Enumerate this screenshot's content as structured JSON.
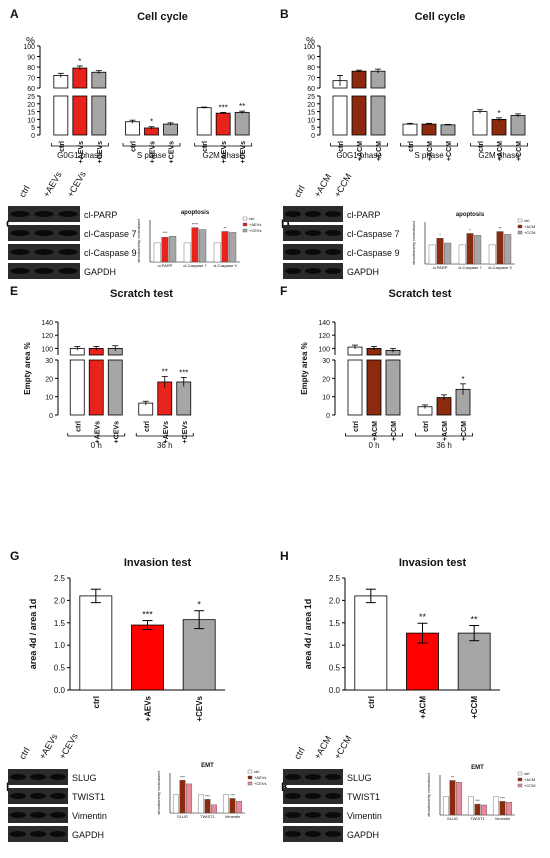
{
  "panels": [
    {
      "id": "A",
      "letter": "A",
      "title": "Cell cycle",
      "kind": "bar-broken",
      "unit": "%",
      "groups": [
        {
          "label": "G0G1 phase",
          "bars": [
            "ctrl",
            "+AEVs",
            "+CEVs"
          ],
          "values": [
            72,
            79,
            75
          ],
          "errors": [
            2,
            2,
            1.5
          ],
          "stars": [
            "",
            "*",
            ""
          ]
        },
        {
          "label": "S phase",
          "bars": [
            "ctrl",
            "+AEVs",
            "+CEVs"
          ],
          "values": [
            8.5,
            4.5,
            7
          ],
          "errors": [
            1,
            0.8,
            0.8
          ],
          "stars": [
            "",
            "*",
            ""
          ]
        },
        {
          "label": "G2M phase",
          "bars": [
            "ctrl",
            "+AEVs",
            "+CEVs"
          ],
          "values": [
            17.5,
            14,
            14.5
          ],
          "errors": [
            0.4,
            0.5,
            0.8
          ],
          "stars": [
            "",
            "***",
            "**"
          ]
        }
      ],
      "colors": [
        "#ffffff",
        "#e8231b",
        "#a6a6a6"
      ]
    },
    {
      "id": "B",
      "letter": "B",
      "title": "Cell cycle",
      "kind": "bar-broken",
      "unit": "%",
      "groups": [
        {
          "label": "G0G1 phase",
          "bars": [
            "ctrl",
            "+ACM",
            "+CCM"
          ],
          "values": [
            67,
            76,
            76
          ],
          "errors": [
            5,
            1,
            2
          ],
          "stars": [
            "",
            "",
            ""
          ]
        },
        {
          "label": "S phase",
          "bars": [
            "ctrl",
            "+ACM",
            "+CCM"
          ],
          "values": [
            7,
            7,
            6.5
          ],
          "errors": [
            0.5,
            0.5,
            0.3
          ],
          "stars": [
            "",
            "",
            ""
          ]
        },
        {
          "label": "G2M phase",
          "bars": [
            "ctrl",
            "+ACM",
            "+CCM"
          ],
          "values": [
            15,
            10,
            12.5
          ],
          "errors": [
            1.2,
            1,
            1
          ],
          "stars": [
            "",
            "*",
            ""
          ]
        }
      ],
      "colors": [
        "#ffffff",
        "#8b2a0c",
        "#a6a6a6"
      ]
    },
    {
      "id": "E",
      "letter": "E",
      "title": "Scratch test",
      "kind": "bar-broken",
      "ylabel": "Empty area %",
      "groups": [
        {
          "label": "0 h",
          "bars": [
            "ctrl",
            "+AEVs",
            "+CEVs"
          ],
          "values": [
            100,
            100,
            100
          ],
          "errors": [
            3,
            3,
            4
          ],
          "stars": [
            "",
            "",
            ""
          ]
        },
        {
          "label": "36 h",
          "bars": [
            "ctrl",
            "+AEVs",
            "+CEVs"
          ],
          "values": [
            6.5,
            18,
            18
          ],
          "errors": [
            1,
            3,
            2.5
          ],
          "stars": [
            "",
            "**",
            "***"
          ]
        }
      ],
      "colors": [
        "#ffffff",
        "#e8231b",
        "#a6a6a6"
      ]
    },
    {
      "id": "F",
      "letter": "F",
      "title": "Scratch test",
      "kind": "bar-broken",
      "ylabel": "Empty area %",
      "groups": [
        {
          "label": "0 h",
          "bars": [
            "ctrl",
            "+ACM",
            "+CCM"
          ],
          "values": [
            102,
            100,
            97
          ],
          "errors": [
            3,
            3,
            3
          ],
          "stars": [
            "",
            "",
            ""
          ]
        },
        {
          "label": "36 h",
          "bars": [
            "ctrl",
            "+ACM",
            "+CCM"
          ],
          "values": [
            4.5,
            9.5,
            14
          ],
          "errors": [
            1,
            1.5,
            3
          ],
          "stars": [
            "",
            "",
            "*"
          ]
        }
      ],
      "colors": [
        "#ffffff",
        "#8b2a0c",
        "#a6a6a6"
      ]
    },
    {
      "id": "G",
      "letter": "G",
      "title": "Invasion test",
      "kind": "bar",
      "ylabel": "area 4d / area 1d",
      "categories": [
        "ctrl",
        "+AEVs",
        "+CEVs"
      ],
      "values": [
        2.1,
        1.45,
        1.57
      ],
      "errors": [
        0.15,
        0.1,
        0.2
      ],
      "stars": [
        "",
        "***",
        "*"
      ],
      "ylim": [
        0,
        2.5
      ],
      "yticks": [
        "0.0",
        "0.5",
        "1.0",
        "1.5",
        "2.0",
        "2.5"
      ],
      "colors": [
        "#ffffff",
        "#ff0000",
        "#a6a6a6"
      ]
    },
    {
      "id": "H",
      "letter": "H",
      "title": "Invasion test",
      "kind": "bar",
      "ylabel": "area 4d / area 1d",
      "categories": [
        "ctrl",
        "+ACM",
        "+CCM"
      ],
      "values": [
        2.1,
        1.27,
        1.27
      ],
      "errors": [
        0.15,
        0.22,
        0.17
      ],
      "stars": [
        "",
        "**",
        "**"
      ],
      "ylim": [
        0,
        2.5
      ],
      "yticks": [
        "0.0",
        "0.5",
        "1.0",
        "1.5",
        "2.0",
        "2.5"
      ],
      "colors": [
        "#ffffff",
        "#ff0000",
        "#a6a6a6"
      ]
    }
  ],
  "blot_panels": [
    {
      "id": "C",
      "letter": "C",
      "lanes": [
        "ctrl",
        "+AEVs",
        "+CEVs"
      ],
      "bands": [
        "cl-PARP",
        "cl-Caspase 7",
        "cl-Caspase 9",
        "GAPDH"
      ],
      "inset": {
        "title": "apoptosis",
        "ylabel": "densitometry normalized",
        "categories": [
          "cl-PARP",
          "cl-Caspase 7",
          "cl-Caspase 9"
        ],
        "legend": [
          "ctrl",
          "+AEVs",
          "+CEVs"
        ],
        "series": [
          [
            1.0,
            1.0,
            1.0
          ],
          [
            1.3,
            1.8,
            1.6
          ],
          [
            1.35,
            1.7,
            1.55
          ]
        ],
        "stars": [
          "***",
          "****",
          "**"
        ],
        "colors": [
          "#ffffff",
          "#e8231b",
          "#a6a6a6"
        ]
      }
    },
    {
      "id": "D",
      "letter": "D",
      "lanes": [
        "ctrl",
        "+ACM",
        "+CCM"
      ],
      "bands": [
        "cl-PARP",
        "cl-Caspase 7",
        "cl-Caspase 9",
        "GAPDH"
      ],
      "inset": {
        "title": "apoptosis",
        "ylabel": "densitometry normalized",
        "categories": [
          "cl-PARP",
          "cl-Caspase 7",
          "cl-Caspase 9"
        ],
        "legend": [
          "ctrl",
          "+ACM",
          "+CCM"
        ],
        "series": [
          [
            1.0,
            1.0,
            1.0
          ],
          [
            1.35,
            1.6,
            1.7
          ],
          [
            1.1,
            1.5,
            1.55
          ]
        ],
        "stars": [
          "*",
          "*",
          "**"
        ],
        "colors": [
          "#ffffff",
          "#8b2a0c",
          "#a6a6a6"
        ]
      }
    },
    {
      "id": "I",
      "letter": "I",
      "lanes": [
        "ctrl",
        "+AEVs",
        "+CEVs"
      ],
      "bands": [
        "SLUG",
        "TWIST1",
        "Vimentin",
        "GAPDH"
      ],
      "inset": {
        "title": "EMT",
        "ylabel": "densitometry normalized",
        "categories": [
          "SLUG",
          "TWIST1",
          "Vimentin"
        ],
        "legend": [
          "ctrl",
          "+AEVs",
          "+CEVs"
        ],
        "series": [
          [
            1.0,
            1.0,
            1.0
          ],
          [
            1.8,
            0.75,
            0.8
          ],
          [
            1.6,
            0.45,
            0.65
          ]
        ],
        "stars": [
          "***",
          "***",
          "***"
        ],
        "colors": [
          "#ffffff",
          "#8b2a0c",
          "#e88a9a"
        ]
      }
    },
    {
      "id": "K",
      "letter": "K",
      "lanes": [
        "ctrl",
        "+ACM",
        "+CCM"
      ],
      "bands": [
        "SLUG",
        "TWIST1",
        "Vimentin",
        "GAPDH"
      ],
      "inset": {
        "title": "EMT",
        "ylabel": "densitometry normalized",
        "categories": [
          "SLUG",
          "TWIST1",
          "Vimentin"
        ],
        "legend": [
          "ctrl",
          "+ACM",
          "+CCM"
        ],
        "series": [
          [
            1.0,
            1.0,
            1.0
          ],
          [
            1.9,
            0.6,
            0.75
          ],
          [
            1.8,
            0.55,
            0.7
          ]
        ],
        "stars": [
          "**",
          "***",
          "***"
        ],
        "colors": [
          "#ffffff",
          "#8b2a0c",
          "#e88a9a"
        ]
      }
    }
  ],
  "chart_data": [
    {
      "panel": "A",
      "type": "bar",
      "title": "Cell cycle",
      "ylabel": "%",
      "categories": [
        "G0G1 phase",
        "S phase",
        "G2M phase"
      ],
      "series": [
        {
          "name": "ctrl",
          "values": [
            72,
            8.5,
            17.5
          ]
        },
        {
          "name": "+AEVs",
          "values": [
            79,
            4.5,
            14
          ]
        },
        {
          "name": "+CEVs",
          "values": [
            75,
            7,
            14.5
          ]
        }
      ]
    },
    {
      "panel": "B",
      "type": "bar",
      "title": "Cell cycle",
      "ylabel": "%",
      "categories": [
        "G0G1 phase",
        "S phase",
        "G2M phase"
      ],
      "series": [
        {
          "name": "ctrl",
          "values": [
            67,
            7,
            15
          ]
        },
        {
          "name": "+ACM",
          "values": [
            76,
            7,
            10
          ]
        },
        {
          "name": "+CCM",
          "values": [
            76,
            6.5,
            12.5
          ]
        }
      ]
    },
    {
      "panel": "E",
      "type": "bar",
      "title": "Scratch test",
      "ylabel": "Empty area %",
      "categories": [
        "0 h",
        "36 h"
      ],
      "series": [
        {
          "name": "ctrl",
          "values": [
            100,
            6.5
          ]
        },
        {
          "name": "+AEVs",
          "values": [
            100,
            18
          ]
        },
        {
          "name": "+CEVs",
          "values": [
            100,
            18
          ]
        }
      ]
    },
    {
      "panel": "F",
      "type": "bar",
      "title": "Scratch test",
      "ylabel": "Empty area %",
      "categories": [
        "0 h",
        "36 h"
      ],
      "series": [
        {
          "name": "ctrl",
          "values": [
            102,
            4.5
          ]
        },
        {
          "name": "+ACM",
          "values": [
            100,
            9.5
          ]
        },
        {
          "name": "+CCM",
          "values": [
            97,
            14
          ]
        }
      ]
    },
    {
      "panel": "G",
      "type": "bar",
      "title": "Invasion test",
      "ylabel": "area 4d / area 1d",
      "categories": [
        "ctrl",
        "+AEVs",
        "+CEVs"
      ],
      "values": [
        2.1,
        1.45,
        1.57
      ],
      "ylim": [
        0,
        2.5
      ]
    },
    {
      "panel": "H",
      "type": "bar",
      "title": "Invasion test",
      "ylabel": "area 4d / area 1d",
      "categories": [
        "ctrl",
        "+ACM",
        "+CCM"
      ],
      "values": [
        2.1,
        1.27,
        1.27
      ],
      "ylim": [
        0,
        2.5
      ]
    }
  ]
}
